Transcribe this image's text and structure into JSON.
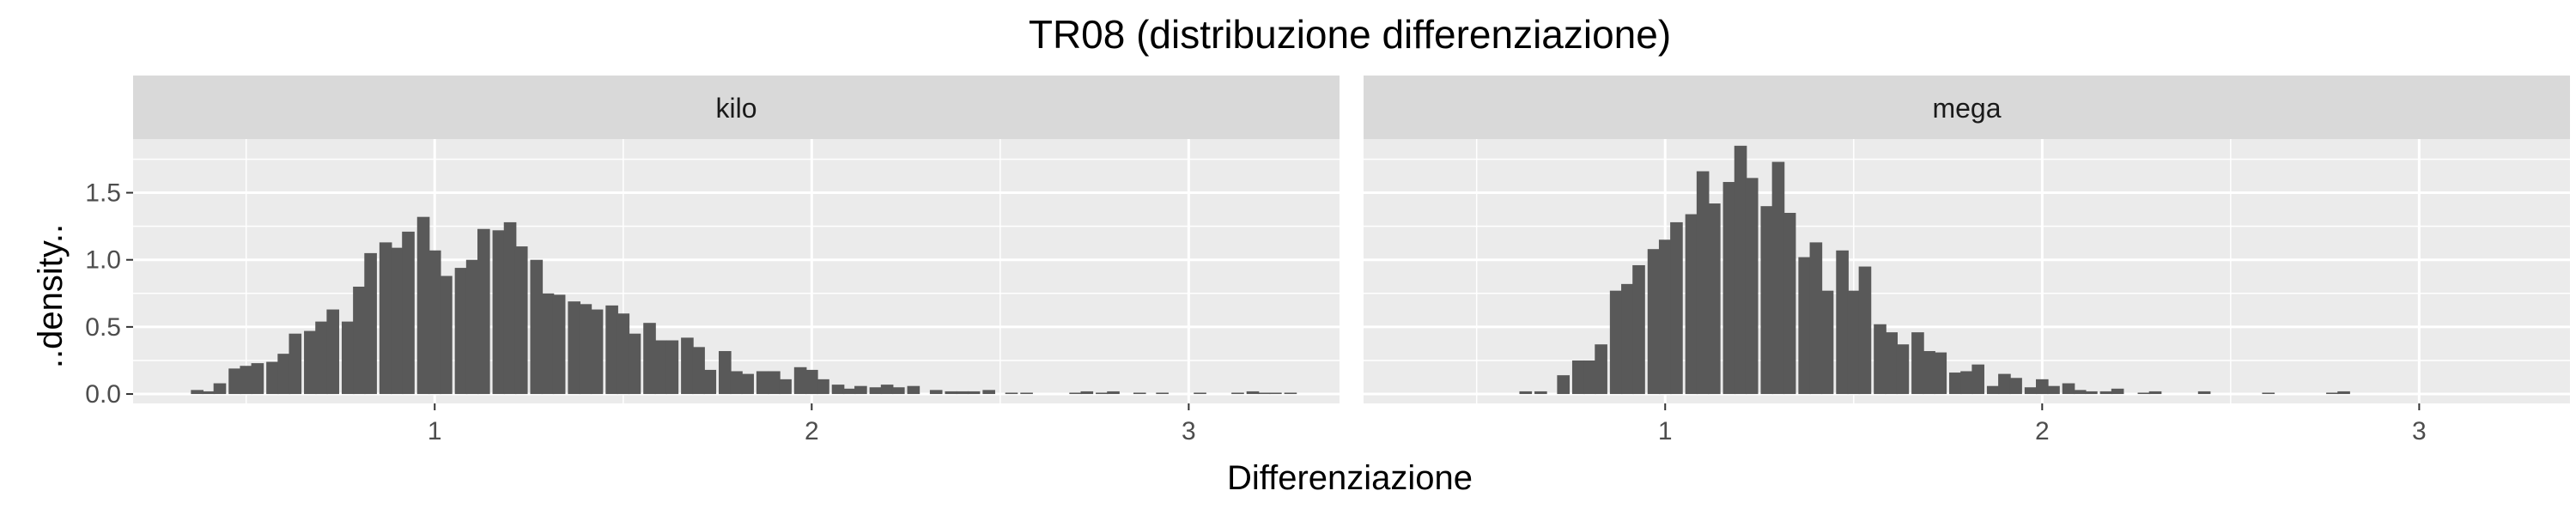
{
  "chart_data": {
    "type": "bar",
    "title": "TR08 (distribuzione differenziazione)",
    "xlabel": "Differenziazione",
    "ylabel": "..density..",
    "xlim": [
      0.2,
      3.4
    ],
    "ylim": [
      -0.07,
      1.9
    ],
    "x_ticks": [
      1,
      2,
      3
    ],
    "x_tick_labels": [
      "1",
      "2",
      "3"
    ],
    "y_ticks": [
      0,
      0.5,
      1,
      1.5
    ],
    "y_tick_labels": [
      "0.0",
      "0.5",
      "1.0",
      "1.5"
    ],
    "grid": true,
    "bin_width": 0.0333,
    "bar_color": "#595959",
    "panel_background": "#ebebeb",
    "strip_background": "#d9d9d9",
    "panels": [
      {
        "label": "kilo",
        "bins": [
          [
            0.37,
            0.03
          ],
          [
            0.4,
            0.02
          ],
          [
            0.43,
            0.08
          ],
          [
            0.47,
            0.19
          ],
          [
            0.5,
            0.21
          ],
          [
            0.53,
            0.23
          ],
          [
            0.57,
            0.24
          ],
          [
            0.6,
            0.3
          ],
          [
            0.63,
            0.45
          ],
          [
            0.67,
            0.47
          ],
          [
            0.7,
            0.54
          ],
          [
            0.73,
            0.63
          ],
          [
            0.77,
            0.54
          ],
          [
            0.8,
            0.8
          ],
          [
            0.83,
            1.05
          ],
          [
            0.87,
            1.13
          ],
          [
            0.9,
            1.09
          ],
          [
            0.93,
            1.21
          ],
          [
            0.97,
            1.32
          ],
          [
            1.0,
            1.07
          ],
          [
            1.03,
            0.88
          ],
          [
            1.07,
            0.94
          ],
          [
            1.1,
            1.0
          ],
          [
            1.13,
            1.23
          ],
          [
            1.17,
            1.22
          ],
          [
            1.2,
            1.28
          ],
          [
            1.23,
            1.1
          ],
          [
            1.27,
            1.0
          ],
          [
            1.3,
            0.75
          ],
          [
            1.33,
            0.74
          ],
          [
            1.37,
            0.69
          ],
          [
            1.4,
            0.67
          ],
          [
            1.43,
            0.63
          ],
          [
            1.47,
            0.66
          ],
          [
            1.5,
            0.6
          ],
          [
            1.53,
            0.45
          ],
          [
            1.57,
            0.53
          ],
          [
            1.6,
            0.4
          ],
          [
            1.63,
            0.4
          ],
          [
            1.67,
            0.42
          ],
          [
            1.7,
            0.35
          ],
          [
            1.73,
            0.18
          ],
          [
            1.77,
            0.32
          ],
          [
            1.8,
            0.17
          ],
          [
            1.83,
            0.15
          ],
          [
            1.87,
            0.17
          ],
          [
            1.9,
            0.17
          ],
          [
            1.93,
            0.11
          ],
          [
            1.97,
            0.2
          ],
          [
            2.0,
            0.18
          ],
          [
            2.03,
            0.11
          ],
          [
            2.07,
            0.07
          ],
          [
            2.1,
            0.04
          ],
          [
            2.13,
            0.06
          ],
          [
            2.17,
            0.05
          ],
          [
            2.2,
            0.07
          ],
          [
            2.23,
            0.05
          ],
          [
            2.27,
            0.06
          ],
          [
            2.33,
            0.03
          ],
          [
            2.37,
            0.02
          ],
          [
            2.4,
            0.02
          ],
          [
            2.43,
            0.02
          ],
          [
            2.47,
            0.03
          ],
          [
            2.53,
            0.01
          ],
          [
            2.57,
            0.01
          ],
          [
            2.7,
            0.01
          ],
          [
            2.73,
            0.02
          ],
          [
            2.77,
            0.01
          ],
          [
            2.8,
            0.02
          ],
          [
            2.87,
            0.01
          ],
          [
            2.93,
            0.01
          ],
          [
            3.03,
            0.01
          ],
          [
            3.13,
            0.01
          ],
          [
            3.17,
            0.02
          ],
          [
            3.2,
            0.01
          ],
          [
            3.23,
            0.01
          ],
          [
            3.27,
            0.01
          ]
        ]
      },
      {
        "label": "mega",
        "bins": [
          [
            0.63,
            0.02
          ],
          [
            0.67,
            0.02
          ],
          [
            0.73,
            0.14
          ],
          [
            0.77,
            0.25
          ],
          [
            0.8,
            0.25
          ],
          [
            0.83,
            0.37
          ],
          [
            0.87,
            0.77
          ],
          [
            0.9,
            0.82
          ],
          [
            0.93,
            0.96
          ],
          [
            0.97,
            1.08
          ],
          [
            1.0,
            1.15
          ],
          [
            1.03,
            1.28
          ],
          [
            1.07,
            1.34
          ],
          [
            1.1,
            1.66
          ],
          [
            1.13,
            1.42
          ],
          [
            1.17,
            1.58
          ],
          [
            1.2,
            1.85
          ],
          [
            1.23,
            1.61
          ],
          [
            1.27,
            1.4
          ],
          [
            1.3,
            1.73
          ],
          [
            1.33,
            1.35
          ],
          [
            1.37,
            1.02
          ],
          [
            1.4,
            1.13
          ],
          [
            1.43,
            0.77
          ],
          [
            1.47,
            1.07
          ],
          [
            1.5,
            0.77
          ],
          [
            1.53,
            0.95
          ],
          [
            1.57,
            0.52
          ],
          [
            1.6,
            0.46
          ],
          [
            1.63,
            0.37
          ],
          [
            1.67,
            0.46
          ],
          [
            1.7,
            0.32
          ],
          [
            1.73,
            0.31
          ],
          [
            1.77,
            0.16
          ],
          [
            1.8,
            0.17
          ],
          [
            1.83,
            0.22
          ],
          [
            1.87,
            0.06
          ],
          [
            1.9,
            0.15
          ],
          [
            1.93,
            0.12
          ],
          [
            1.97,
            0.05
          ],
          [
            2.0,
            0.11
          ],
          [
            2.03,
            0.06
          ],
          [
            2.07,
            0.08
          ],
          [
            2.1,
            0.03
          ],
          [
            2.13,
            0.02
          ],
          [
            2.17,
            0.02
          ],
          [
            2.2,
            0.04
          ],
          [
            2.27,
            0.01
          ],
          [
            2.3,
            0.02
          ],
          [
            2.43,
            0.02
          ],
          [
            2.6,
            0.01
          ],
          [
            2.77,
            0.01
          ],
          [
            2.8,
            0.02
          ]
        ]
      }
    ]
  }
}
